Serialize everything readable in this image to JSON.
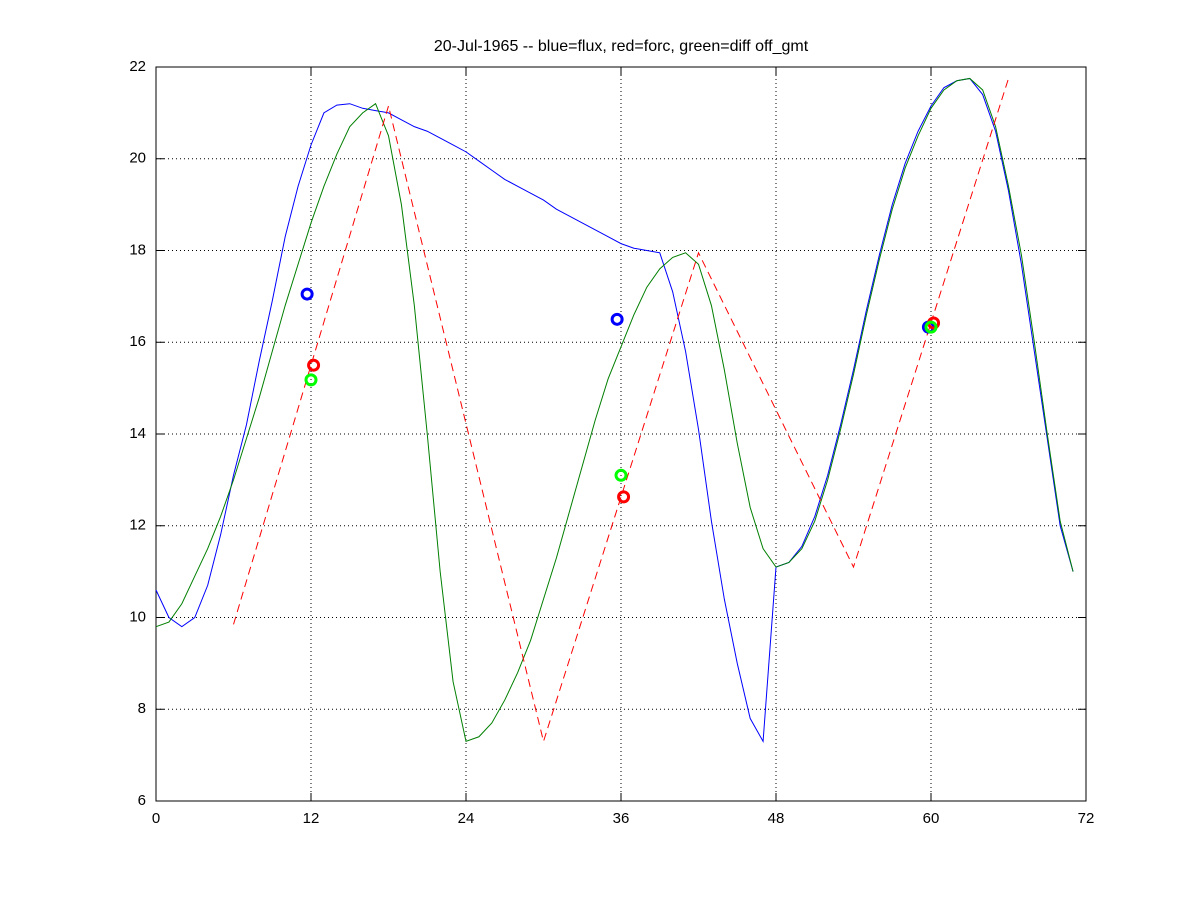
{
  "chart_data": {
    "type": "line",
    "title": "20-Jul-1965 -- blue=flux, red=forc, green=diff off_gmt",
    "x": [
      0,
      1,
      2,
      3,
      4,
      5,
      6,
      7,
      8,
      9,
      10,
      11,
      12,
      13,
      14,
      15,
      16,
      17,
      18,
      19,
      20,
      21,
      22,
      23,
      24,
      25,
      26,
      27,
      28,
      29,
      30,
      31,
      32,
      33,
      34,
      35,
      36,
      37,
      38,
      39,
      40,
      41,
      42,
      43,
      44,
      45,
      46,
      47,
      48,
      49,
      50,
      51,
      52,
      53,
      54,
      55,
      56,
      57,
      58,
      59,
      60,
      61,
      62,
      63,
      64,
      65,
      66,
      67,
      68,
      69,
      70,
      71
    ],
    "series": [
      {
        "color": "#0000ff",
        "style": "solid",
        "values": [
          10.6,
          10.0,
          9.8,
          10.0,
          10.7,
          11.8,
          13.1,
          14.2,
          15.6,
          16.9,
          18.3,
          19.4,
          20.3,
          21.0,
          21.17,
          21.2,
          21.1,
          21.05,
          21.0,
          20.85,
          20.7,
          20.6,
          20.45,
          20.3,
          20.15,
          19.95,
          19.75,
          19.55,
          19.4,
          19.25,
          19.1,
          18.9,
          18.75,
          18.6,
          18.45,
          18.3,
          18.15,
          18.05,
          18.0,
          17.95,
          17.1,
          15.8,
          14.1,
          12.1,
          10.4,
          9.0,
          7.8,
          7.3,
          11.1,
          11.2,
          11.55,
          12.2,
          13.1,
          14.2,
          15.4,
          16.7,
          17.9,
          19.0,
          19.9,
          20.6,
          21.15,
          21.55,
          21.7,
          21.75,
          21.4,
          20.6,
          19.3,
          17.7,
          15.8,
          13.9,
          12.0,
          11.0
        ]
      },
      {
        "color": "#007f00",
        "style": "solid",
        "values": [
          9.8,
          9.9,
          10.3,
          10.9,
          11.5,
          12.2,
          13.0,
          13.9,
          14.8,
          15.8,
          16.8,
          17.7,
          18.6,
          19.4,
          20.1,
          20.7,
          21.0,
          21.2,
          20.5,
          19.0,
          16.8,
          14.0,
          11.0,
          8.6,
          7.3,
          7.4,
          7.7,
          8.2,
          8.8,
          9.5,
          10.4,
          11.3,
          12.3,
          13.3,
          14.3,
          15.2,
          15.9,
          16.6,
          17.2,
          17.6,
          17.85,
          17.95,
          17.7,
          16.8,
          15.4,
          13.8,
          12.4,
          11.5,
          11.1,
          11.2,
          11.5,
          12.1,
          13.0,
          14.1,
          15.3,
          16.6,
          17.8,
          18.9,
          19.8,
          20.5,
          21.1,
          21.5,
          21.7,
          21.75,
          21.5,
          20.7,
          19.4,
          17.9,
          16.0,
          14.0,
          12.1,
          11.0
        ]
      },
      {
        "color": "#ff0000",
        "style": "dashed",
        "x": [
          6,
          18,
          30,
          42,
          54,
          66
        ],
        "values": [
          9.85,
          21.15,
          7.3,
          17.95,
          11.1,
          21.75
        ]
      }
    ],
    "points": [
      {
        "color": "#0000ff",
        "x": [
          11.7,
          35.7,
          59.8
        ],
        "values": [
          17.05,
          16.5,
          16.33
        ]
      },
      {
        "color": "#ff0000",
        "x": [
          12.2,
          36.2,
          60.2
        ],
        "values": [
          15.5,
          12.63,
          16.42
        ]
      },
      {
        "color": "#00ff00",
        "x": [
          12.0,
          36.0,
          60.0
        ],
        "values": [
          15.18,
          13.1,
          16.33
        ]
      }
    ],
    "xlim": [
      0,
      72
    ],
    "xticks": [
      0,
      12,
      24,
      36,
      48,
      60,
      72
    ],
    "ylim": [
      6,
      22
    ],
    "yticks": [
      6,
      8,
      10,
      12,
      14,
      16,
      18,
      20,
      22
    ],
    "grid": true
  }
}
